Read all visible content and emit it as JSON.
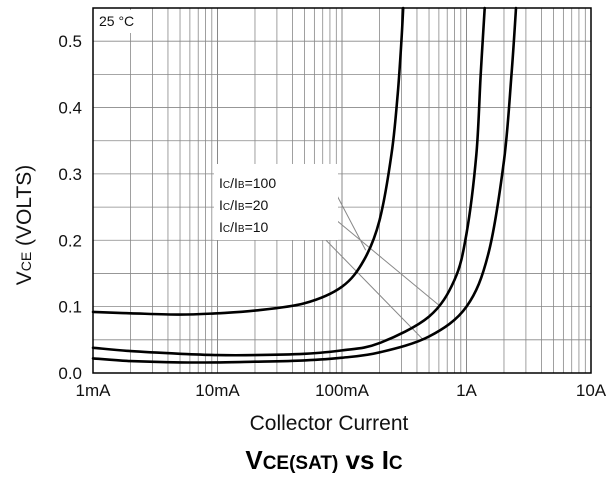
{
  "chart_data": {
    "type": "line",
    "title": "VCE(SAT) vs IC",
    "title_parts": {
      "main": "V",
      "sub1": "CE(SAT)",
      "mid": " vs I",
      "sub2": "C"
    },
    "xlabel": "Collector Current",
    "ylabel_parts": {
      "main": "V",
      "sub": "CE",
      "rest": " (VOLTS)"
    },
    "annotation_temp": "25 °C",
    "x_scale": "log",
    "xlim": [
      0.001,
      10
    ],
    "ylim": [
      0,
      0.55
    ],
    "grid": true,
    "x_ticks": [
      {
        "value": 0.001,
        "label": "1mA"
      },
      {
        "value": 0.01,
        "label": "10mA"
      },
      {
        "value": 0.1,
        "label": "100mA"
      },
      {
        "value": 1,
        "label": "1A"
      },
      {
        "value": 10,
        "label": "10A"
      }
    ],
    "y_ticks": [
      {
        "value": 0.0,
        "label": "0.0"
      },
      {
        "value": 0.1,
        "label": "0.1"
      },
      {
        "value": 0.2,
        "label": "0.2"
      },
      {
        "value": 0.3,
        "label": "0.3"
      },
      {
        "value": 0.4,
        "label": "0.4"
      },
      {
        "value": 0.5,
        "label": "0.5"
      }
    ],
    "series": [
      {
        "name": "IC/IB=100",
        "label_parts": {
          "a": "I",
          "b": "C",
          "c": "/I",
          "d": "B",
          "e": "=100"
        },
        "x": [
          0.001,
          0.002,
          0.005,
          0.01,
          0.02,
          0.05,
          0.1,
          0.15,
          0.2,
          0.25,
          0.28,
          0.3,
          0.31
        ],
        "y": [
          0.092,
          0.09,
          0.088,
          0.09,
          0.094,
          0.105,
          0.13,
          0.17,
          0.23,
          0.33,
          0.42,
          0.5,
          0.55
        ]
      },
      {
        "name": "IC/IB=20",
        "label_parts": {
          "a": "I",
          "b": "C",
          "c": "/I",
          "d": "B",
          "e": "=20"
        },
        "x": [
          0.001,
          0.002,
          0.005,
          0.01,
          0.02,
          0.05,
          0.1,
          0.2,
          0.5,
          0.8,
          1.0,
          1.2,
          1.3,
          1.4
        ],
        "y": [
          0.038,
          0.033,
          0.029,
          0.027,
          0.027,
          0.029,
          0.034,
          0.045,
          0.085,
          0.14,
          0.21,
          0.33,
          0.45,
          0.55
        ]
      },
      {
        "name": "IC/IB=10",
        "label_parts": {
          "a": "I",
          "b": "C",
          "c": "/I",
          "d": "B",
          "e": "=10"
        },
        "x": [
          0.001,
          0.002,
          0.005,
          0.01,
          0.02,
          0.05,
          0.1,
          0.2,
          0.5,
          1.0,
          1.5,
          2.0,
          2.3,
          2.5
        ],
        "y": [
          0.022,
          0.018,
          0.016,
          0.016,
          0.017,
          0.019,
          0.023,
          0.031,
          0.055,
          0.1,
          0.18,
          0.32,
          0.45,
          0.55
        ]
      }
    ],
    "colors": {
      "line": "#000000",
      "grid": "#888888",
      "leader": "#888888",
      "background": "#ffffff"
    }
  }
}
